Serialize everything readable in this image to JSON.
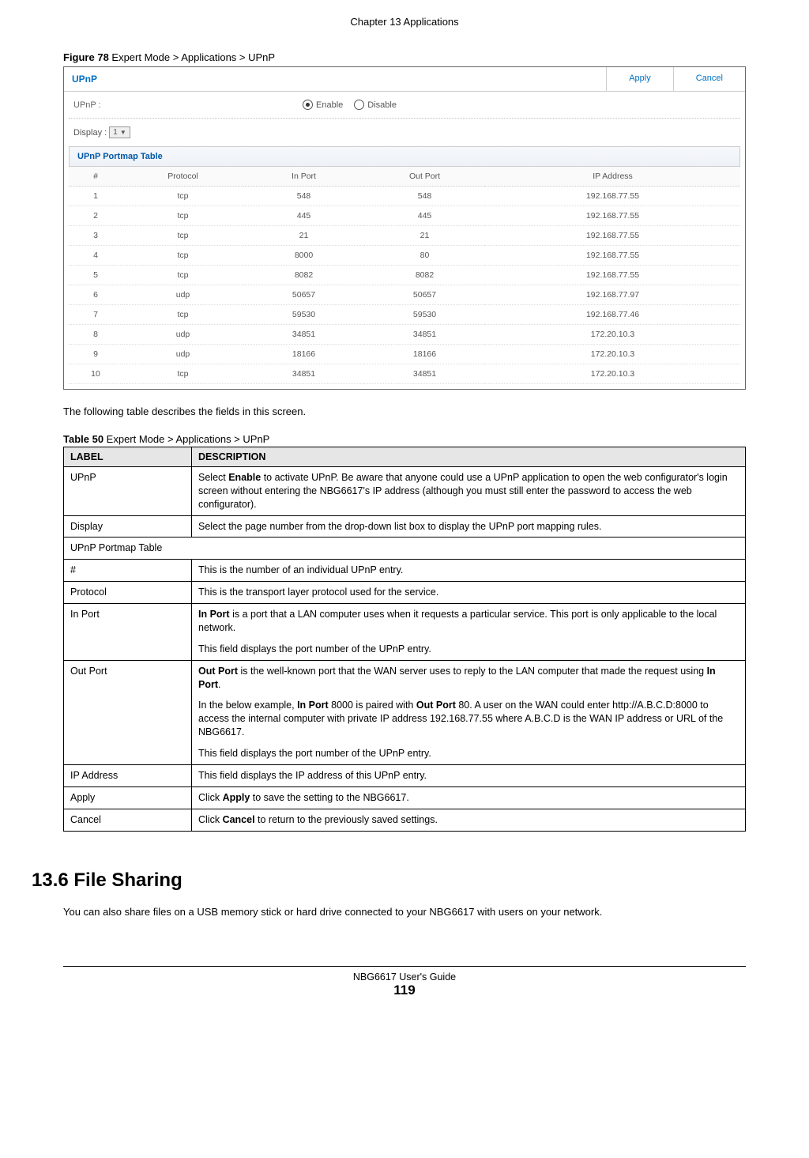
{
  "chapter_header": "Chapter 13 Applications",
  "figure_caption_bold": "Figure 78",
  "figure_caption_rest": "   Expert Mode > Applications > UPnP",
  "screenshot": {
    "title": "UPnP",
    "apply_btn": "Apply",
    "cancel_btn": "Cancel",
    "upnp_label": "UPnP :",
    "radio_enable": "Enable",
    "radio_disable": "Disable",
    "display_label": "Display :",
    "display_value": "1",
    "portmap_title": "UPnP Portmap Table",
    "columns": {
      "num": "#",
      "protocol": "Protocol",
      "in_port": "In Port",
      "out_port": "Out Port",
      "ip": "IP Address"
    },
    "rows": [
      {
        "n": "1",
        "proto": "tcp",
        "in": "548",
        "out": "548",
        "ip": "192.168.77.55"
      },
      {
        "n": "2",
        "proto": "tcp",
        "in": "445",
        "out": "445",
        "ip": "192.168.77.55"
      },
      {
        "n": "3",
        "proto": "tcp",
        "in": "21",
        "out": "21",
        "ip": "192.168.77.55"
      },
      {
        "n": "4",
        "proto": "tcp",
        "in": "8000",
        "out": "80",
        "ip": "192.168.77.55"
      },
      {
        "n": "5",
        "proto": "tcp",
        "in": "8082",
        "out": "8082",
        "ip": "192.168.77.55"
      },
      {
        "n": "6",
        "proto": "udp",
        "in": "50657",
        "out": "50657",
        "ip": "192.168.77.97"
      },
      {
        "n": "7",
        "proto": "tcp",
        "in": "59530",
        "out": "59530",
        "ip": "192.168.77.46"
      },
      {
        "n": "8",
        "proto": "udp",
        "in": "34851",
        "out": "34851",
        "ip": "172.20.10.3"
      },
      {
        "n": "9",
        "proto": "udp",
        "in": "18166",
        "out": "18166",
        "ip": "172.20.10.3"
      },
      {
        "n": "10",
        "proto": "tcp",
        "in": "34851",
        "out": "34851",
        "ip": "172.20.10.3"
      }
    ]
  },
  "intro_text": "The following table describes the fields in this screen.",
  "table_caption_bold": "Table 50",
  "table_caption_rest": "   Expert Mode > Applications > UPnP",
  "desc_table": {
    "h_label": "LABEL",
    "h_desc": "DESCRIPTION",
    "rows": {
      "upnp": {
        "label": "UPnP",
        "pre": "Select ",
        "b1": "Enable",
        "post": " to activate UPnP. Be aware that anyone could use a UPnP application to open the web configurator's login screen without entering the NBG6617's IP address (although you must still enter the password to access the web configurator)."
      },
      "display": {
        "label": "Display",
        "text": "Select the page number from the drop-down list box to display the UPnP port mapping rules."
      },
      "portmap": {
        "label": "UPnP Portmap Table"
      },
      "num": {
        "label": "#",
        "text": "This is the number of an individual UPnP entry."
      },
      "protocol": {
        "label": "Protocol",
        "text": "This is the transport layer protocol used for the service."
      },
      "inport": {
        "label": "In Port",
        "b1": "In Port",
        "p1_post": " is a port that a LAN computer uses when it requests a particular service. This port is only applicable to the local network.",
        "p2": "This field displays the port number of the UPnP entry."
      },
      "outport": {
        "label": "Out Port",
        "b1": "Out Port",
        "p1_mid": " is the well-known port that the WAN server uses to reply to the LAN computer that made the request using ",
        "b2": "In Port",
        "p1_end": ".",
        "p2_pre": "In the below example, ",
        "b3": "In Port",
        "p2_mid1": " 8000 is paired with ",
        "b4": "Out Port",
        "p2_mid2": " 80. A user on the WAN could enter http://A.B.C.D:8000 to access the internal computer with private IP address 192.168.77.55 where A.B.C.D is the WAN IP address or URL of the NBG6617.",
        "p3": "This field displays the port number of the UPnP entry."
      },
      "ip": {
        "label": "IP Address",
        "text": "This field displays the IP address of this UPnP entry."
      },
      "apply": {
        "label": "Apply",
        "pre": "Click ",
        "b1": "Apply",
        "post": " to save the setting to the NBG6617."
      },
      "cancel": {
        "label": "Cancel",
        "pre": "Click ",
        "b1": "Cancel",
        "post": " to return to the previously saved settings."
      }
    }
  },
  "section_heading": "13.6  File Sharing",
  "section_body": "You can also share files on a USB memory stick or hard drive connected to your NBG6617 with users on your network.",
  "footer_guide": "NBG6617 User's Guide",
  "footer_page": "119"
}
